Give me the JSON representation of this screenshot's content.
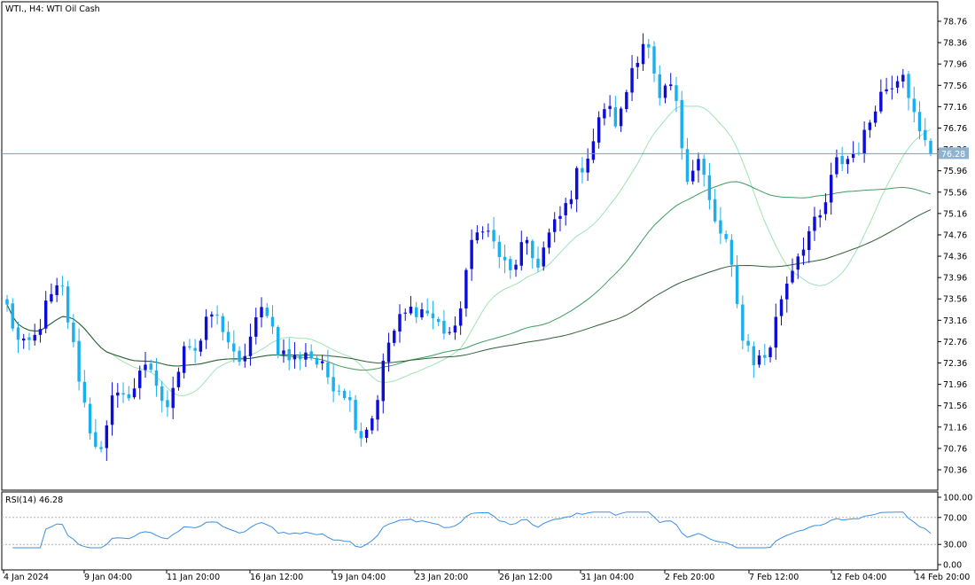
{
  "chart_data": {
    "type": "candlestick",
    "title": "WTI., H4:  WTI Oil Cash",
    "symbol": "WTI.",
    "timeframe": "H4",
    "instrument": "WTI Oil Cash",
    "current_price": "76.28",
    "ylim": [
      70.0,
      79.0
    ],
    "y_ticks": [
      "78.76",
      "78.36",
      "77.96",
      "77.56",
      "77.16",
      "76.76",
      "76.36",
      "75.96",
      "75.56",
      "75.16",
      "74.76",
      "74.36",
      "73.96",
      "73.56",
      "73.16",
      "72.76",
      "72.36",
      "71.96",
      "71.56",
      "71.16",
      "70.76",
      "70.36"
    ],
    "x_ticks": [
      "4 Jan 2024",
      "9 Jan 04:00",
      "11 Jan 20:00",
      "16 Jan 12:00",
      "19 Jan 04:00",
      "23 Jan 20:00",
      "26 Jan 12:00",
      "31 Jan 04:00",
      "2 Feb 20:00",
      "7 Feb 12:00",
      "12 Feb 04:00",
      "14 Feb 20:00"
    ],
    "close_path": [
      73.4,
      72.6,
      72.8,
      73.5,
      73.8,
      72.5,
      71.2,
      70.6,
      72.0,
      71.6,
      72.5,
      71.8,
      71.5,
      72.8,
      72.6,
      73.3,
      73.0,
      72.2,
      72.9,
      73.5,
      72.6,
      72.4,
      72.6,
      72.3,
      72.0,
      71.8,
      71.0,
      71.4,
      72.7,
      73.2,
      73.4,
      73.3,
      73.0,
      72.9,
      74.4,
      75.0,
      74.5,
      74.0,
      74.6,
      74.2,
      74.8,
      75.2,
      75.9,
      76.4,
      77.2,
      76.8,
      77.9,
      78.5,
      77.2,
      77.6,
      75.9,
      76.2,
      75.0,
      74.6,
      73.0,
      72.4,
      72.5,
      73.6,
      74.3,
      74.8,
      75.1,
      76.1,
      76.2,
      76.5,
      77.3,
      77.6,
      77.9,
      76.7,
      76.3
    ],
    "rsi": {
      "label": "RSI(14) 46.28",
      "period": 14,
      "value": 46.28,
      "levels": [
        70,
        30
      ],
      "scale": [
        "100.00",
        "70.00",
        "30.00",
        "0.00"
      ]
    },
    "colors": {
      "bull": "#0d0dd6",
      "bear": "#1ab0f0",
      "ma_fast": "#9ee3b5",
      "ma_mid": "#3f9d5e",
      "ma_slow": "#2e5f3a",
      "rsi_line": "#3b8ee6",
      "grid_level": "#b0b0b0",
      "price_line": "#7a9bb8",
      "price_tag_bg": "#8eb3d0"
    }
  }
}
